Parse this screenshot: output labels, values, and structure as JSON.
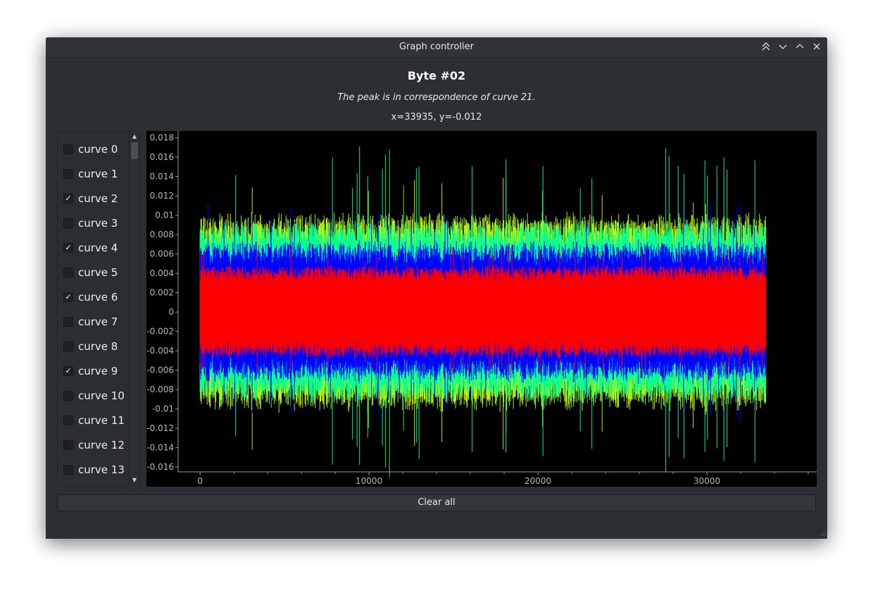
{
  "window": {
    "title": "Graph controller",
    "controls": [
      "keep-above-icon",
      "minimize-icon",
      "maximize-icon",
      "close-icon"
    ]
  },
  "header": {
    "title": "Byte #02",
    "subtitle": "The peak is in correspondence of curve 21.",
    "coordinates": "x=33935, y=-0.012"
  },
  "curves": [
    {
      "label": "curve 0",
      "checked": false
    },
    {
      "label": "curve 1",
      "checked": false
    },
    {
      "label": "curve 2",
      "checked": true
    },
    {
      "label": "curve 3",
      "checked": false
    },
    {
      "label": "curve 4",
      "checked": true
    },
    {
      "label": "curve 5",
      "checked": false
    },
    {
      "label": "curve 6",
      "checked": true
    },
    {
      "label": "curve 7",
      "checked": false
    },
    {
      "label": "curve 8",
      "checked": false
    },
    {
      "label": "curve 9",
      "checked": true
    },
    {
      "label": "curve 10",
      "checked": false
    },
    {
      "label": "curve 11",
      "checked": false
    },
    {
      "label": "curve 12",
      "checked": false
    },
    {
      "label": "curve 13",
      "checked": false
    }
  ],
  "chart_data": {
    "type": "line",
    "xlim": [
      -1300,
      36500
    ],
    "ylim": [
      -0.0165,
      0.0187
    ],
    "x_ticks": [
      0,
      10000,
      20000,
      30000
    ],
    "x_tick_labels": [
      "0",
      "10000",
      "20000",
      "30000"
    ],
    "y_ticks": [
      0.018,
      0.016,
      0.014,
      0.012,
      0.01,
      0.008,
      0.006,
      0.004,
      0.002,
      0,
      -0.002,
      -0.004,
      -0.006,
      -0.008,
      -0.01,
      -0.012,
      -0.014,
      -0.016
    ],
    "y_tick_labels": [
      "0.018",
      "0.016",
      "0.014",
      "0.012",
      "0.01",
      "0.008",
      "0.006",
      "0.004",
      "0.002",
      "0",
      "-0.002",
      "-0.004",
      "-0.006",
      "-0.008",
      "-0.01",
      "-0.012",
      "-0.014",
      "-0.016"
    ],
    "x_range": [
      0,
      33500
    ],
    "grid": false,
    "background": "#000000",
    "series": [
      {
        "color": "#c8ff00",
        "amplitude": 0.0095,
        "spike": 0.0145
      },
      {
        "color": "#00ff99",
        "amplitude": 0.0088,
        "spike": 0.0172
      },
      {
        "color": "#0000ff",
        "amplitude": 0.0068,
        "spike": 0.0115
      },
      {
        "color": "#ff0000",
        "amplitude": 0.0045,
        "spike": 0.0072
      }
    ]
  },
  "footer": {
    "clear_label": "Clear all"
  },
  "colors": {
    "window_bg": "#2b2e33",
    "titlebar_bg": "#2f3237",
    "text": "#e8e8e8"
  }
}
